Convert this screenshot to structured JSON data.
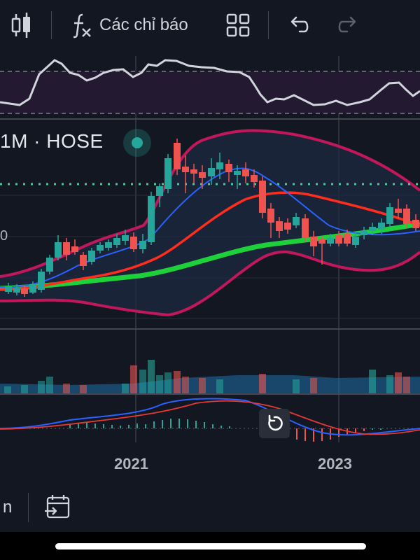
{
  "toolbar": {
    "indicators_label": "Các chỉ báo",
    "icons": [
      "candles-icon",
      "fx-icon",
      "grid-icon",
      "undo-icon",
      "redo-icon"
    ]
  },
  "chart": {
    "symbol_label": "1M · HOSE",
    "price_tick_label": "0",
    "year_labels": [
      "2021",
      "2023"
    ],
    "colors": {
      "up": "#26a69a",
      "down": "#ef5350",
      "bollinger": "#c2185b",
      "ma_fast": "#2962ff",
      "ma_slow": "#ff2d1e",
      "ma_long": "#1ed03a",
      "rsi_line": "#d1d4dc",
      "macd": "#2962ff",
      "signal": "#e53935"
    }
  },
  "bottombar": {
    "text": "n"
  }
}
